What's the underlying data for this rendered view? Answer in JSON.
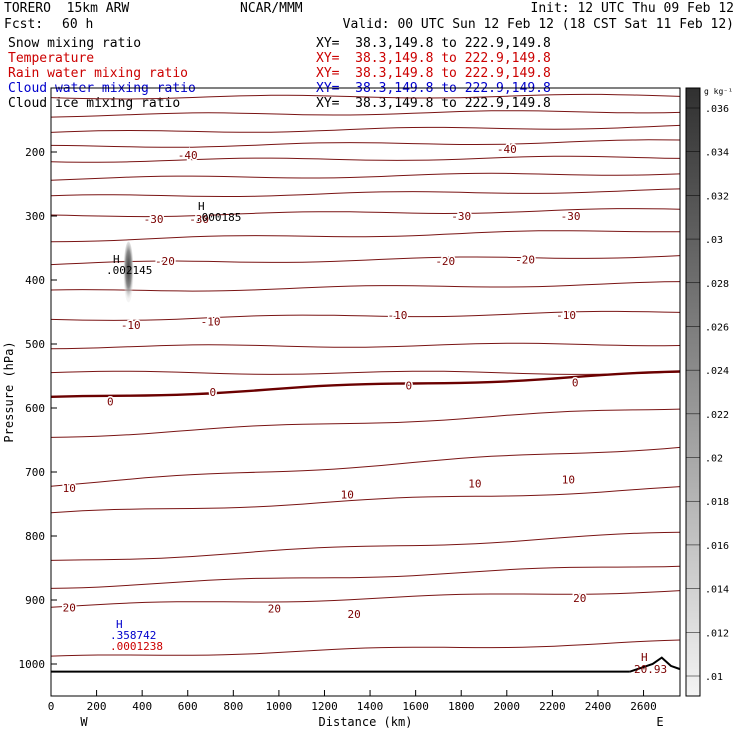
{
  "header": {
    "model": "TORERO  15km ARW",
    "center": "NCAR/MMM",
    "init": "Init: 12 UTC Thu 09 Feb 12",
    "fcst_label": "Fcst:",
    "fcst_value": "60 h",
    "valid": "Valid: 00 UTC Sun 12 Feb 12 (18 CST Sat 11 Feb 12)"
  },
  "fields": [
    {
      "name": "Snow mixing ratio",
      "xy": "XY=  38.3,149.8 to 222.9,149.8",
      "color": "#000000"
    },
    {
      "name": "Temperature",
      "xy": "XY=  38.3,149.8 to 222.9,149.8",
      "color": "#cc0000"
    },
    {
      "name": "Rain water mixing ratio",
      "xy": "XY=  38.3,149.8 to 222.9,149.8",
      "color": "#cc0000"
    },
    {
      "name": "Cloud water mixing ratio",
      "xy": "XY=  38.3,149.8 to 222.9,149.8",
      "color": "#0000cc"
    },
    {
      "name": "Cloud ice mixing ratio",
      "xy": "XY=  38.3,149.8 to 222.9,149.8",
      "color": "#000000"
    }
  ],
  "colorbar": {
    "unit": "g kg⁻¹",
    "labels": [
      ".036",
      ".034",
      ".032",
      ".03",
      ".028",
      ".026",
      ".024",
      ".022",
      ".02",
      ".018",
      ".016",
      ".014",
      ".012",
      ".01"
    ]
  },
  "annotations": {
    "snow_max_letter": "H",
    "snow_max_value": ".002145",
    "ice_max_letter": "H",
    "ice_max_value": ".000185",
    "cloud_max_letter": "H",
    "cloud_max_value": ".358742",
    "rain_max_value": ".0001238",
    "temp_max_letter": "H",
    "temp_max_value": "20.93"
  },
  "chart_data": {
    "type": "line",
    "title": "",
    "xlabel": "Distance (km)",
    "ylabel": "Pressure (hPa)",
    "xlim": [
      0,
      2760
    ],
    "ylim": [
      1050,
      100
    ],
    "x_ticks": [
      0,
      200,
      400,
      600,
      800,
      1000,
      1200,
      1400,
      1600,
      1800,
      2000,
      2200,
      2400,
      2600
    ],
    "x_tick_labels": [
      "0",
      "200",
      "400",
      "600",
      "800",
      "1000",
      "1200",
      "1400",
      "1600",
      "1800",
      "2000",
      "2200",
      "2400",
      "2600"
    ],
    "y_ticks": [
      200,
      300,
      400,
      500,
      600,
      700,
      800,
      900,
      1000
    ],
    "y_tick_labels": [
      "200",
      "300",
      "400",
      "500",
      "600",
      "700",
      "800",
      "900",
      "1000"
    ],
    "x_end_labels": {
      "left": "W",
      "right": "E"
    },
    "isotherm_interval": 5,
    "isotherms": [
      {
        "series": "Temperature",
        "pressure_at_left": 115,
        "pressure_at_right": 112
      },
      {
        "series": "Temperature",
        "pressure_at_left": 143,
        "pressure_at_right": 136
      },
      {
        "series": "Temperature",
        "pressure_at_left": 170,
        "pressure_at_right": 160
      },
      {
        "series": "Temperature",
        "pressure_at_left": 192,
        "pressure_at_right": 183
      },
      {
        "series": "Temperature",
        "pressure_at_left": 214,
        "pressure_at_right": 208
      },
      {
        "series": "Temperature",
        "pressure_at_left": 242,
        "pressure_at_right": 233
      },
      {
        "series": "Temperature",
        "pressure_at_left": 270,
        "pressure_at_right": 260
      },
      {
        "series": "Temperature",
        "pressure_at_left": 300,
        "pressure_at_right": 290
      },
      {
        "series": "Temperature",
        "pressure_at_left": 338,
        "pressure_at_right": 322
      },
      {
        "series": "Temperature",
        "pressure_at_left": 375,
        "pressure_at_right": 362
      },
      {
        "series": "Temperature",
        "pressure_at_left": 418,
        "pressure_at_right": 405
      },
      {
        "series": "Temperature",
        "pressure_at_left": 462,
        "pressure_at_right": 450
      },
      {
        "series": "Temperature",
        "pressure_at_left": 505,
        "pressure_at_right": 500
      },
      {
        "series": "Temperature",
        "pressure_at_left": 545,
        "pressure_at_right": 545
      },
      {
        "series": "Temperature",
        "pressure_at_left": 585,
        "pressure_at_right": 545,
        "label": "0"
      },
      {
        "series": "Temperature",
        "pressure_at_left": 645,
        "pressure_at_right": 600
      },
      {
        "series": "Temperature",
        "pressure_at_left": 720,
        "pressure_at_right": 660
      },
      {
        "series": "Temperature",
        "pressure_at_left": 765,
        "pressure_at_right": 725,
        "label": "10"
      },
      {
        "series": "Temperature",
        "pressure_at_left": 840,
        "pressure_at_right": 795
      },
      {
        "series": "Temperature",
        "pressure_at_left": 880,
        "pressure_at_right": 845
      },
      {
        "series": "Temperature",
        "pressure_at_left": 910,
        "pressure_at_right": 885,
        "label": "20"
      },
      {
        "series": "Temperature",
        "pressure_at_left": 990,
        "pressure_at_right": 965
      }
    ],
    "contour_labels": [
      {
        "value": "-40",
        "x": 600,
        "p": 205
      },
      {
        "value": "-40",
        "x": 2000,
        "p": 195
      },
      {
        "value": "-30",
        "x": 450,
        "p": 305
      },
      {
        "value": "-30",
        "x": 650,
        "p": 305
      },
      {
        "value": "-30",
        "x": 1800,
        "p": 300
      },
      {
        "value": "-30",
        "x": 2280,
        "p": 300
      },
      {
        "value": "-20",
        "x": 500,
        "p": 370
      },
      {
        "value": "-20",
        "x": 1730,
        "p": 370
      },
      {
        "value": "-20",
        "x": 2080,
        "p": 368
      },
      {
        "value": "-10",
        "x": 350,
        "p": 470
      },
      {
        "value": "-10",
        "x": 700,
        "p": 465
      },
      {
        "value": "-10",
        "x": 1520,
        "p": 455
      },
      {
        "value": "-10",
        "x": 2260,
        "p": 455
      },
      {
        "value": "0",
        "x": 260,
        "p": 590
      },
      {
        "value": "0",
        "x": 710,
        "p": 575
      },
      {
        "value": "0",
        "x": 1570,
        "p": 565
      },
      {
        "value": "0",
        "x": 2300,
        "p": 560
      },
      {
        "value": "10",
        "x": 80,
        "p": 725
      },
      {
        "value": "10",
        "x": 1300,
        "p": 735
      },
      {
        "value": "10",
        "x": 1860,
        "p": 718
      },
      {
        "value": "10",
        "x": 2270,
        "p": 712
      },
      {
        "value": "20",
        "x": 80,
        "p": 912
      },
      {
        "value": "20",
        "x": 980,
        "p": 913
      },
      {
        "value": "20",
        "x": 1330,
        "p": 922
      },
      {
        "value": "20",
        "x": 2320,
        "p": 897
      }
    ],
    "snow_field": {
      "x": 340,
      "p_top": 340,
      "p_bottom": 435,
      "max": 0.002145
    }
  }
}
